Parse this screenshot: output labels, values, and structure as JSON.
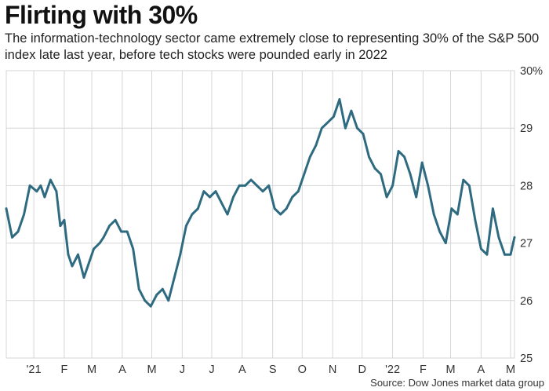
{
  "chart_data": {
    "type": "line",
    "title": "Flirting with 30%",
    "subtitle": "The information-technology sector came extremely close to representing 30% of the S&P 500 index late last year, before tech stocks were pounded early in 2022",
    "source": "Source: Dow Jones market data group",
    "xlabel": "",
    "ylabel": "",
    "ylim": [
      25,
      30
    ],
    "y_ticks": [
      25,
      26,
      27,
      28,
      29,
      30
    ],
    "y_tick_labels": [
      "25",
      "26",
      "27",
      "28",
      "29",
      "30%"
    ],
    "y_axis_side": "right",
    "grid": true,
    "legend": "none",
    "line_color": "#2e6b80",
    "x_range": [
      "2020-12-04",
      "2022-05-05"
    ],
    "x_ticks": [
      {
        "date": "2021-01-01",
        "label": "'21"
      },
      {
        "date": "2021-02-01",
        "label": "F"
      },
      {
        "date": "2021-03-01",
        "label": "M"
      },
      {
        "date": "2021-04-01",
        "label": "A"
      },
      {
        "date": "2021-05-01",
        "label": "M"
      },
      {
        "date": "2021-06-01",
        "label": "J"
      },
      {
        "date": "2021-07-01",
        "label": "J"
      },
      {
        "date": "2021-08-01",
        "label": "A"
      },
      {
        "date": "2021-09-01",
        "label": "S"
      },
      {
        "date": "2021-10-01",
        "label": "O"
      },
      {
        "date": "2021-11-01",
        "label": "N"
      },
      {
        "date": "2021-12-01",
        "label": "D"
      },
      {
        "date": "2022-01-01",
        "label": "'22"
      },
      {
        "date": "2022-02-01",
        "label": "F"
      },
      {
        "date": "2022-03-01",
        "label": "M"
      },
      {
        "date": "2022-04-01",
        "label": "A"
      },
      {
        "date": "2022-05-01",
        "label": "M"
      }
    ],
    "series": [
      {
        "name": "",
        "x": [
          "2020-12-04",
          "2020-12-10",
          "2020-12-16",
          "2020-12-22",
          "2020-12-28",
          "2021-01-04",
          "2021-01-08",
          "2021-01-12",
          "2021-01-18",
          "2021-01-24",
          "2021-01-28",
          "2021-02-01",
          "2021-02-05",
          "2021-02-09",
          "2021-02-15",
          "2021-02-21",
          "2021-02-27",
          "2021-03-03",
          "2021-03-09",
          "2021-03-13",
          "2021-03-19",
          "2021-03-25",
          "2021-03-31",
          "2021-04-06",
          "2021-04-12",
          "2021-04-18",
          "2021-04-24",
          "2021-04-30",
          "2021-05-06",
          "2021-05-12",
          "2021-05-18",
          "2021-05-24",
          "2021-05-30",
          "2021-06-05",
          "2021-06-11",
          "2021-06-17",
          "2021-06-23",
          "2021-06-29",
          "2021-07-05",
          "2021-07-11",
          "2021-07-17",
          "2021-07-23",
          "2021-07-29",
          "2021-08-04",
          "2021-08-10",
          "2021-08-16",
          "2021-08-22",
          "2021-08-28",
          "2021-09-03",
          "2021-09-09",
          "2021-09-15",
          "2021-09-21",
          "2021-09-27",
          "2021-10-03",
          "2021-10-09",
          "2021-10-15",
          "2021-10-21",
          "2021-10-27",
          "2021-11-02",
          "2021-11-08",
          "2021-11-14",
          "2021-11-20",
          "2021-11-26",
          "2021-12-02",
          "2021-12-08",
          "2021-12-14",
          "2021-12-20",
          "2021-12-26",
          "2022-01-01",
          "2022-01-07",
          "2022-01-13",
          "2022-01-19",
          "2022-01-25",
          "2022-01-31",
          "2022-02-06",
          "2022-02-12",
          "2022-02-18",
          "2022-02-24",
          "2022-03-02",
          "2022-03-08",
          "2022-03-14",
          "2022-03-20",
          "2022-03-26",
          "2022-04-01",
          "2022-04-07",
          "2022-04-13",
          "2022-04-19",
          "2022-04-25",
          "2022-05-01",
          "2022-05-05"
        ],
        "values": [
          27.6,
          27.1,
          27.2,
          27.5,
          28.0,
          27.9,
          28.0,
          27.8,
          28.1,
          27.9,
          27.3,
          27.4,
          26.8,
          26.6,
          26.8,
          26.4,
          26.7,
          26.9,
          27.0,
          27.1,
          27.3,
          27.4,
          27.2,
          27.2,
          26.9,
          26.2,
          26.0,
          25.9,
          26.1,
          26.2,
          26.0,
          26.4,
          26.8,
          27.3,
          27.5,
          27.6,
          27.9,
          27.8,
          27.9,
          27.7,
          27.5,
          27.8,
          28.0,
          28.0,
          28.1,
          28.0,
          27.9,
          28.0,
          27.6,
          27.5,
          27.6,
          27.8,
          27.9,
          28.2,
          28.5,
          28.7,
          29.0,
          29.1,
          29.2,
          29.5,
          29.0,
          29.3,
          29.0,
          28.9,
          28.5,
          28.3,
          28.2,
          27.8,
          28.0,
          28.6,
          28.5,
          28.2,
          27.8,
          28.4,
          28.0,
          27.5,
          27.2,
          27.0,
          27.6,
          27.5,
          28.1,
          28.0,
          27.4,
          26.9,
          26.8,
          27.6,
          27.1,
          26.8,
          26.8,
          27.1
        ]
      }
    ]
  }
}
